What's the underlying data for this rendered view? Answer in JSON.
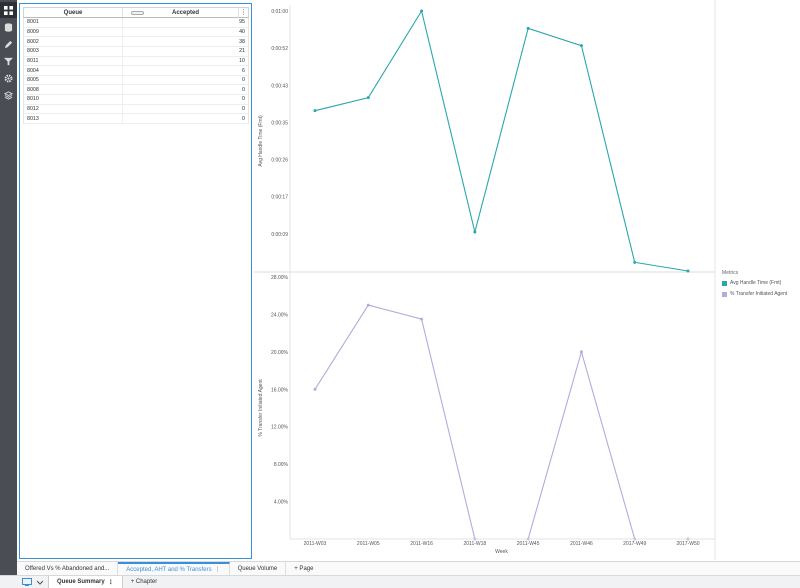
{
  "toolbar": {
    "items": [
      {
        "icon": "grid-icon",
        "active": true
      },
      {
        "icon": "database-icon"
      },
      {
        "icon": "pencil-icon"
      },
      {
        "icon": "filter-icon"
      },
      {
        "icon": "gear-icon"
      },
      {
        "icon": "layers-icon"
      }
    ]
  },
  "grid": {
    "columns": [
      "Queue",
      "Accepted"
    ],
    "menu": "⋮",
    "rows": [
      {
        "queue": "8001",
        "accepted": "95"
      },
      {
        "queue": "8009",
        "accepted": "40"
      },
      {
        "queue": "8002",
        "accepted": "38"
      },
      {
        "queue": "8003",
        "accepted": "21"
      },
      {
        "queue": "8011",
        "accepted": "10"
      },
      {
        "queue": "8004",
        "accepted": "6"
      },
      {
        "queue": "8005",
        "accepted": "0"
      },
      {
        "queue": "8008",
        "accepted": "0"
      },
      {
        "queue": "8010",
        "accepted": "0"
      },
      {
        "queue": "8012",
        "accepted": "0"
      },
      {
        "queue": "8013",
        "accepted": "0"
      }
    ]
  },
  "chart_data": [
    {
      "type": "line",
      "x": [
        "2011-W03",
        "2011-W05",
        "2011-W16",
        "2011-W18",
        "2011-W45",
        "2011-W46",
        "2017-W49",
        "2017-W50"
      ],
      "series": [
        {
          "name": "Avg Handle Time (Fmt)",
          "color": "#2aa6ad",
          "values_seconds": [
            37,
            40,
            60,
            9,
            56,
            52,
            2,
            0
          ]
        }
      ],
      "ylabel": "Avg Handle Time (Fmt)",
      "yticks": [
        "0:00:09",
        "0:00:17",
        "0:00:26",
        "0:00:35",
        "0:00:43",
        "0:00:52",
        "0:01:00"
      ],
      "ylim_seconds": [
        0,
        60
      ]
    },
    {
      "type": "line",
      "x": [
        "2011-W03",
        "2011-W05",
        "2011-W16",
        "2011-W18",
        "2011-W45",
        "2011-W46",
        "2017-W49",
        "2017-W50"
      ],
      "series": [
        {
          "name": "% Transfer Initiated Agent",
          "color": "#b6a9dd",
          "values": [
            16.0,
            25.0,
            23.5,
            0,
            0,
            20.0,
            0,
            0
          ]
        }
      ],
      "xlabel": "Week",
      "ylabel": "% Transfer Initiated Agent",
      "yticks": [
        "4.00%",
        "8.00%",
        "12.00%",
        "16.00%",
        "20.00%",
        "24.00%",
        "28.00%"
      ],
      "ylim": [
        0,
        28
      ]
    }
  ],
  "legend": {
    "title": "Metrics",
    "items": [
      {
        "label": "Avg Handle Time (Fmt)",
        "color": "#2aa6ad"
      },
      {
        "label": "% Transfer Initiated Agent",
        "color": "#b6a9dd"
      }
    ]
  },
  "page_tabs": {
    "tab1": "Offered Vs % Abandoned and...",
    "tab2": "Accepted, AHT and % Transfers",
    "tab2_menu": "⋮",
    "tab3": "Queue Volume",
    "add": "+ Page"
  },
  "chapter_bar": {
    "chapter": "Queue Summary",
    "chapter_menu": "⋮",
    "add": "+ Chapter"
  }
}
